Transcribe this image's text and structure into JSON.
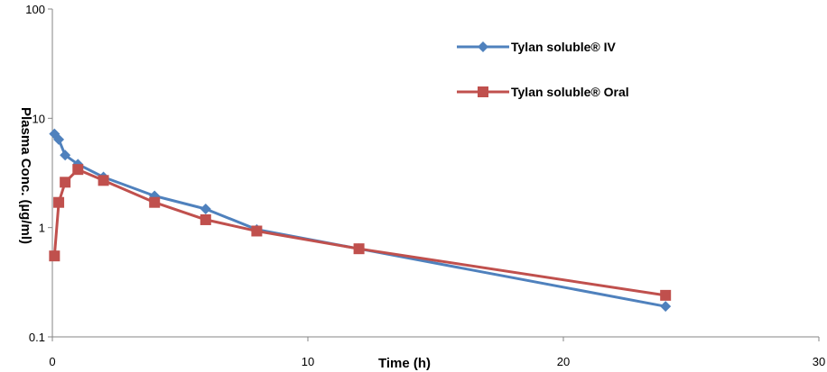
{
  "chart_data": {
    "type": "line",
    "xlabel": "Time (h)",
    "ylabel": "Plasma Conc. (µg/ml)",
    "xlim": [
      0,
      30
    ],
    "ylim": [
      0.1,
      100
    ],
    "yscale": "log",
    "x_ticks": [
      "0",
      "10",
      "20",
      "30"
    ],
    "y_ticks": [
      "0.1",
      "1",
      "10",
      "100"
    ],
    "legend_position": "top-right",
    "series": [
      {
        "name": "Tylan soluble® IV",
        "color": "#4f81bd",
        "marker": "diamond",
        "x": [
          0.083,
          0.25,
          0.5,
          1,
          2,
          4,
          6,
          8,
          12,
          24
        ],
        "y": [
          7.2,
          6.4,
          4.6,
          3.8,
          2.9,
          1.95,
          1.48,
          0.96,
          0.64,
          0.19
        ]
      },
      {
        "name": "Tylan soluble®  Oral",
        "color": "#c0504d",
        "marker": "square",
        "x": [
          0.083,
          0.25,
          0.5,
          1,
          2,
          4,
          6,
          8,
          12,
          24
        ],
        "y": [
          0.55,
          1.7,
          2.6,
          3.4,
          2.7,
          1.7,
          1.18,
          0.93,
          0.64,
          0.24
        ]
      }
    ]
  }
}
